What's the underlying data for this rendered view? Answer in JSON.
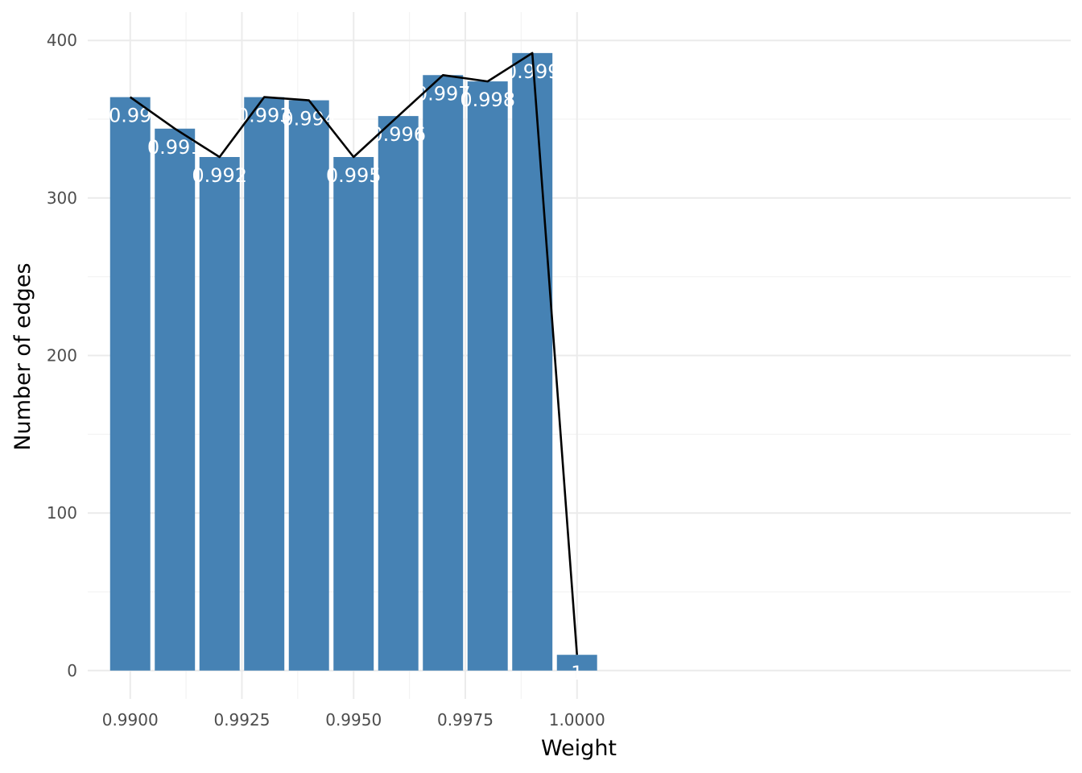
{
  "chart_data": {
    "type": "bar",
    "xlabel": "Weight",
    "ylabel": "Number of edges",
    "xlim": [
      0.98905,
      1.01105
    ],
    "ylim": [
      -18,
      418
    ],
    "x_ticks": [
      0.99,
      0.9925,
      0.995,
      0.9975,
      1.0
    ],
    "x_tick_labels": [
      "0.9900",
      "0.9925",
      "0.9950",
      "0.9975",
      "1.0000"
    ],
    "x_minor_ticks": [
      0.99125,
      0.99375,
      0.99625,
      0.99875
    ],
    "y_ticks": [
      0,
      100,
      200,
      300,
      400
    ],
    "y_tick_labels": [
      "0",
      "100",
      "200",
      "300",
      "400"
    ],
    "y_minor_ticks": [
      50,
      150,
      250,
      350
    ],
    "bar_width": 0.0009,
    "bar_color": "#4682B4",
    "line_color": "#000000",
    "grid": true,
    "legend": "none",
    "x": [
      0.99,
      0.991,
      0.992,
      0.993,
      0.994,
      0.995,
      0.996,
      0.997,
      0.998,
      0.999,
      1.0
    ],
    "values": [
      364,
      344,
      326,
      364,
      362,
      326,
      352,
      378,
      374,
      392,
      10
    ],
    "labels": [
      "0.99",
      "0.991",
      "0.992",
      "0.993",
      "0.994",
      "0.995",
      "0.996",
      "0.997",
      "0.998",
      "0.999",
      "1"
    ]
  }
}
